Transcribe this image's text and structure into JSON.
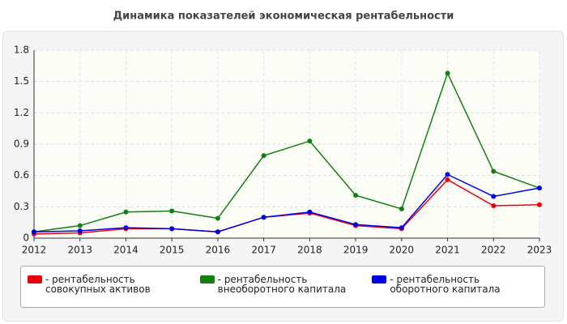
{
  "chart_data": {
    "type": "line",
    "title": "Динамика показателей экономическая рентабельности",
    "categories": [
      "2012",
      "2013",
      "2014",
      "2015",
      "2016",
      "2017",
      "2018",
      "2019",
      "2020",
      "2021",
      "2022",
      "2023"
    ],
    "series": [
      {
        "name": "- рентабельность совокупных активов",
        "color": "#e8000b",
        "values": [
          0.04,
          0.05,
          0.09,
          0.09,
          0.06,
          0.2,
          0.24,
          0.12,
          0.09,
          0.56,
          0.31,
          0.32
        ]
      },
      {
        "name": "- рентабельность внеоборотного капитала",
        "color": "#118011",
        "values": [
          0.06,
          0.12,
          0.25,
          0.26,
          0.19,
          0.79,
          0.93,
          0.41,
          0.28,
          1.58,
          0.64,
          0.48
        ]
      },
      {
        "name": "- рентабельность оборотного капитала",
        "color": "#0000e6",
        "values": [
          0.06,
          0.07,
          0.1,
          0.09,
          0.06,
          0.2,
          0.25,
          0.13,
          0.1,
          0.61,
          0.4,
          0.48
        ]
      }
    ],
    "ylim": [
      0,
      1.8
    ],
    "yticks": [
      0,
      0.3,
      0.6,
      0.9,
      1.2,
      1.5,
      1.8
    ],
    "grid": true
  }
}
